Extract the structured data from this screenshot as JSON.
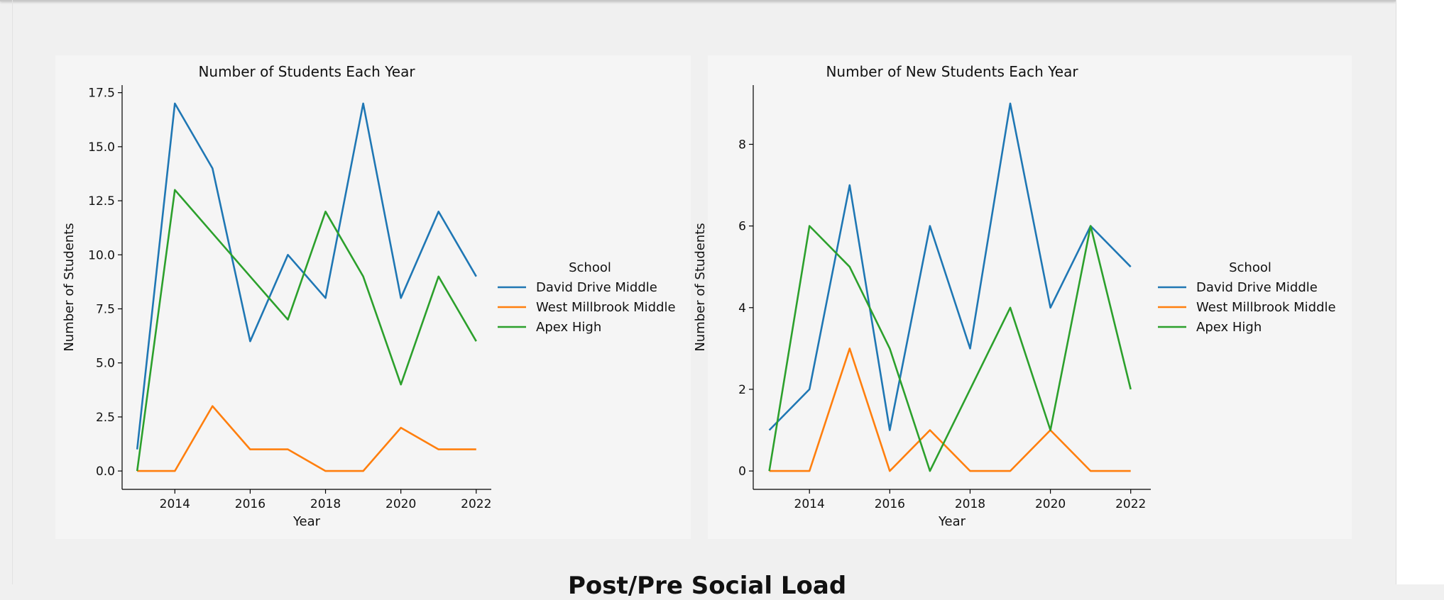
{
  "bottom_heading": "Post/Pre Social Load",
  "legend_title": "School",
  "chart_data": [
    {
      "type": "line",
      "title": "Number of Students Each Year",
      "xlabel": "Year",
      "ylabel": "Number of Students",
      "x": [
        2013,
        2014,
        2015,
        2016,
        2017,
        2018,
        2019,
        2020,
        2021,
        2022
      ],
      "xticks": [
        2014,
        2016,
        2018,
        2020,
        2022
      ],
      "yticks": [
        0.0,
        2.5,
        5.0,
        7.5,
        10.0,
        12.5,
        15.0,
        17.5
      ],
      "ytick_labels": [
        "0.0",
        "2.5",
        "5.0",
        "7.5",
        "10.0",
        "12.5",
        "15.0",
        "17.5"
      ],
      "xlim": [
        2012.6,
        2022.4
      ],
      "ylim": [
        -0.85,
        17.85
      ],
      "grid": false,
      "legend_placement": "right",
      "series": [
        {
          "name": "David Drive Middle",
          "color": "#1f77b4",
          "values": [
            1,
            17,
            14,
            6,
            10,
            8,
            17,
            8,
            12,
            9
          ]
        },
        {
          "name": "West Millbrook Middle",
          "color": "#ff7f0e",
          "values": [
            0,
            0,
            3,
            1,
            1,
            0,
            0,
            2,
            1,
            1
          ]
        },
        {
          "name": "Apex High",
          "color": "#2ca02c",
          "values": [
            0,
            13,
            11,
            9,
            7,
            12,
            9,
            4,
            9,
            6
          ]
        }
      ]
    },
    {
      "type": "line",
      "title": "Number of New Students Each Year",
      "xlabel": "Year",
      "ylabel": "Number of Students",
      "x": [
        2013,
        2014,
        2015,
        2016,
        2017,
        2018,
        2019,
        2020,
        2021,
        2022
      ],
      "xticks": [
        2014,
        2016,
        2018,
        2020,
        2022
      ],
      "yticks": [
        0,
        2,
        4,
        6,
        8
      ],
      "ytick_labels": [
        "0",
        "2",
        "4",
        "6",
        "8"
      ],
      "xlim": [
        2012.6,
        2022.5
      ],
      "ylim": [
        -0.45,
        9.45
      ],
      "grid": false,
      "legend_placement": "right",
      "series": [
        {
          "name": "David Drive Middle",
          "color": "#1f77b4",
          "values": [
            1,
            2,
            7,
            1,
            6,
            3,
            9,
            4,
            6,
            5
          ]
        },
        {
          "name": "West Millbrook Middle",
          "color": "#ff7f0e",
          "values": [
            0,
            0,
            3,
            0,
            1,
            0,
            0,
            1,
            0,
            0
          ]
        },
        {
          "name": "Apex High",
          "color": "#2ca02c",
          "values": [
            0,
            6,
            5,
            3,
            0,
            2,
            4,
            1,
            6,
            2
          ]
        }
      ]
    }
  ]
}
